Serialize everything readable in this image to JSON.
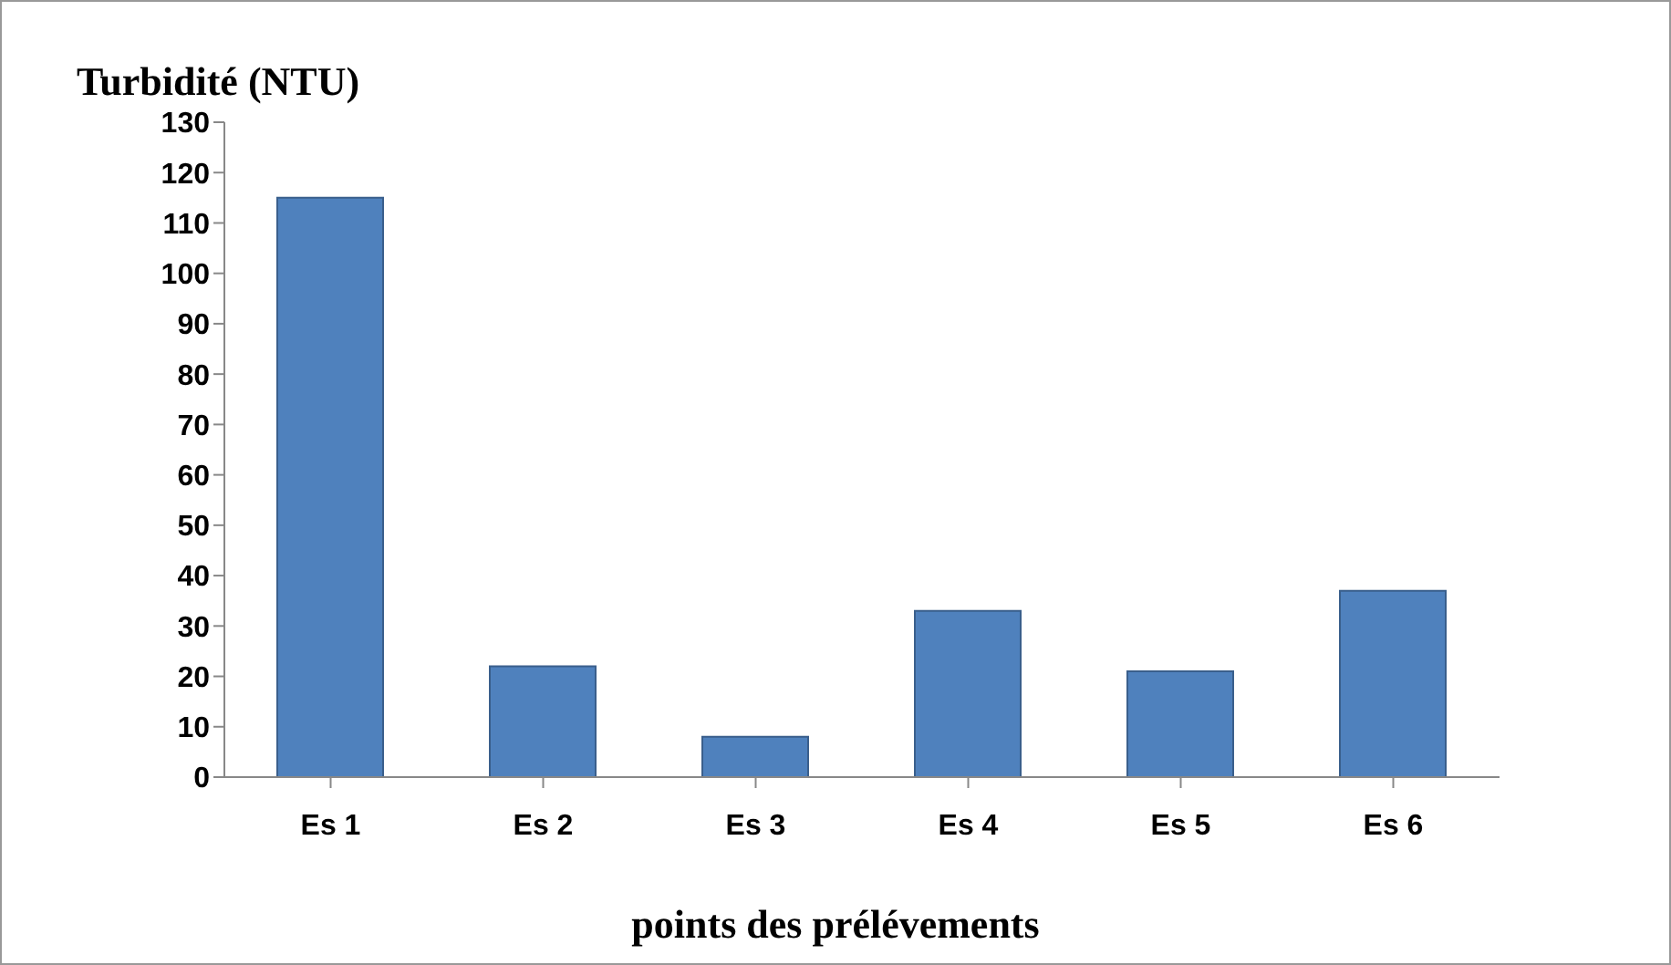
{
  "chart_data": {
    "type": "bar",
    "title": "Turbidité (NTU)",
    "xlabel": "points des prélévements",
    "categories": [
      "Es  1",
      "Es  2",
      "Es  3",
      "Es  4",
      "Es 5",
      "Es 6"
    ],
    "values": [
      115,
      22,
      8,
      33,
      21,
      37
    ],
    "color": "#4f81bd",
    "ylim": [
      0,
      130
    ],
    "yticks": [
      0,
      10,
      20,
      30,
      40,
      50,
      60,
      70,
      80,
      90,
      100,
      110,
      120,
      130
    ],
    "grid": false,
    "legend": false
  }
}
